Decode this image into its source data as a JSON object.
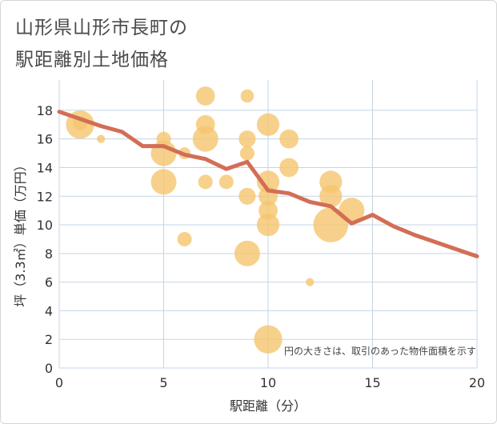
{
  "title_line1": "山形県山形市長町の",
  "title_line2": "駅距離別土地価格",
  "chart_data": {
    "type": "scatter",
    "xlabel": "駅距離（分）",
    "ylabel": "坪（3.3㎡）単価（万円）",
    "xlim": [
      0,
      20
    ],
    "ylim": [
      0,
      19
    ],
    "x_ticks": [
      0,
      5,
      10,
      15,
      20
    ],
    "y_ticks": [
      0,
      2,
      4,
      6,
      8,
      10,
      12,
      14,
      16,
      18
    ],
    "grid": true,
    "note": "円の大きさは、取引のあった物件面積を示す",
    "colors": {
      "bubble": "#f5c66e",
      "line": "#d36e56",
      "grid": "#c5d5e4"
    },
    "bubbles": [
      {
        "x": 1,
        "y": 17,
        "size": 5
      },
      {
        "x": 1,
        "y": 17.1,
        "size": 1
      },
      {
        "x": 2,
        "y": 16,
        "size": 0.2
      },
      {
        "x": 5,
        "y": 16,
        "size": 1
      },
      {
        "x": 5,
        "y": 15,
        "size": 4
      },
      {
        "x": 5,
        "y": 13,
        "size": 4
      },
      {
        "x": 6,
        "y": 15,
        "size": 0.6
      },
      {
        "x": 6,
        "y": 9,
        "size": 1
      },
      {
        "x": 7,
        "y": 19,
        "size": 2
      },
      {
        "x": 7,
        "y": 17,
        "size": 2
      },
      {
        "x": 7,
        "y": 16,
        "size": 4
      },
      {
        "x": 7,
        "y": 13,
        "size": 1
      },
      {
        "x": 8,
        "y": 13,
        "size": 1
      },
      {
        "x": 9,
        "y": 19,
        "size": 0.8
      },
      {
        "x": 9,
        "y": 16,
        "size": 1.5
      },
      {
        "x": 9,
        "y": 15,
        "size": 1
      },
      {
        "x": 9,
        "y": 12,
        "size": 1.5
      },
      {
        "x": 9,
        "y": 8,
        "size": 4
      },
      {
        "x": 10,
        "y": 17,
        "size": 3
      },
      {
        "x": 10,
        "y": 13,
        "size": 3
      },
      {
        "x": 10,
        "y": 12,
        "size": 2
      },
      {
        "x": 10,
        "y": 11,
        "size": 2
      },
      {
        "x": 10,
        "y": 10,
        "size": 3
      },
      {
        "x": 10,
        "y": 2,
        "size": 5
      },
      {
        "x": 11,
        "y": 16,
        "size": 2
      },
      {
        "x": 11,
        "y": 14,
        "size": 2
      },
      {
        "x": 12,
        "y": 6,
        "size": 0.2
      },
      {
        "x": 13,
        "y": 13,
        "size": 3
      },
      {
        "x": 13,
        "y": 12,
        "size": 3
      },
      {
        "x": 13,
        "y": 10,
        "size": 8
      },
      {
        "x": 14,
        "y": 11,
        "size": 4
      }
    ],
    "trend": {
      "x": [
        0,
        1,
        2,
        3,
        4,
        5,
        6,
        7,
        8,
        9,
        10,
        11,
        12,
        13,
        14,
        15,
        16,
        17,
        18,
        19,
        20
      ],
      "y": [
        17.9,
        17.4,
        16.9,
        16.5,
        15.5,
        15.5,
        14.9,
        14.6,
        13.9,
        14.4,
        12.4,
        12.2,
        11.6,
        11.3,
        10.1,
        10.7,
        9.9,
        9.3,
        8.8,
        8.3,
        7.8
      ]
    }
  }
}
